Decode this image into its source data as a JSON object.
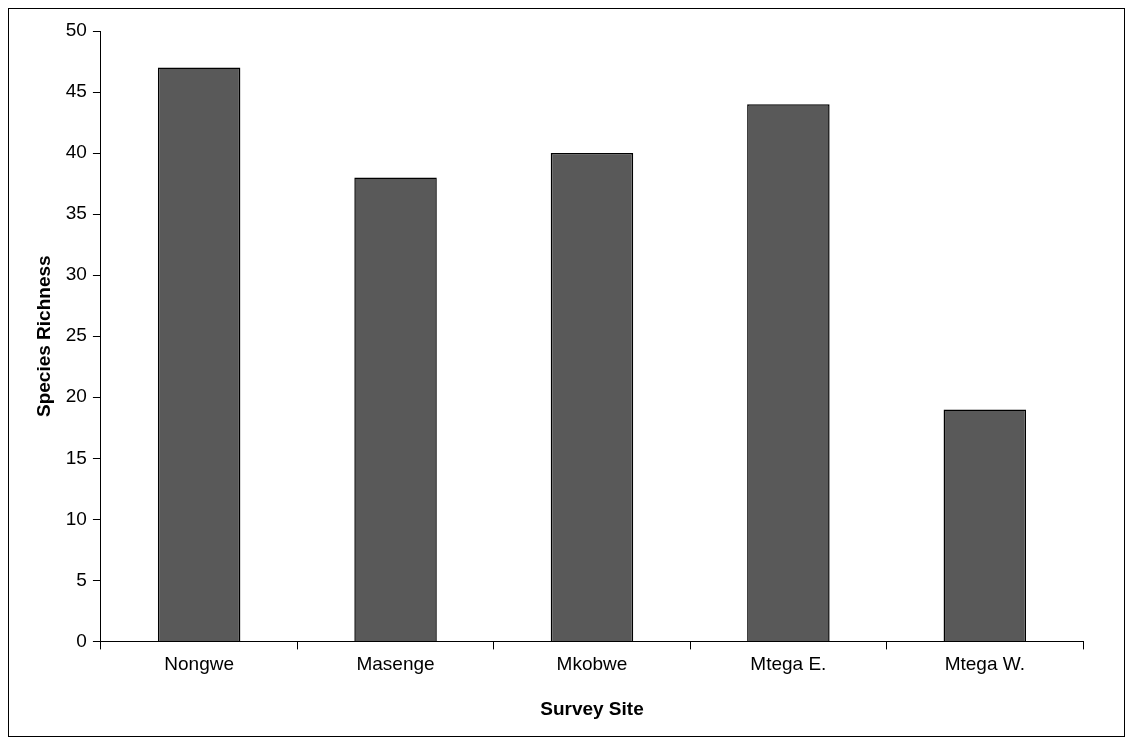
{
  "chart_data": {
    "type": "bar",
    "xlabel": "Survey Site",
    "ylabel": "Species Richness",
    "categories": [
      "Nongwe",
      "Masenge",
      "Mkobwe",
      "Mtega E.",
      "Mtega W."
    ],
    "values": [
      47,
      38,
      40,
      44,
      19
    ],
    "color": "#595959",
    "ylim": [
      0,
      50
    ],
    "yticks": [
      0,
      5,
      10,
      15,
      20,
      25,
      30,
      35,
      40,
      45,
      50
    ],
    "grid": false,
    "legend": false
  }
}
